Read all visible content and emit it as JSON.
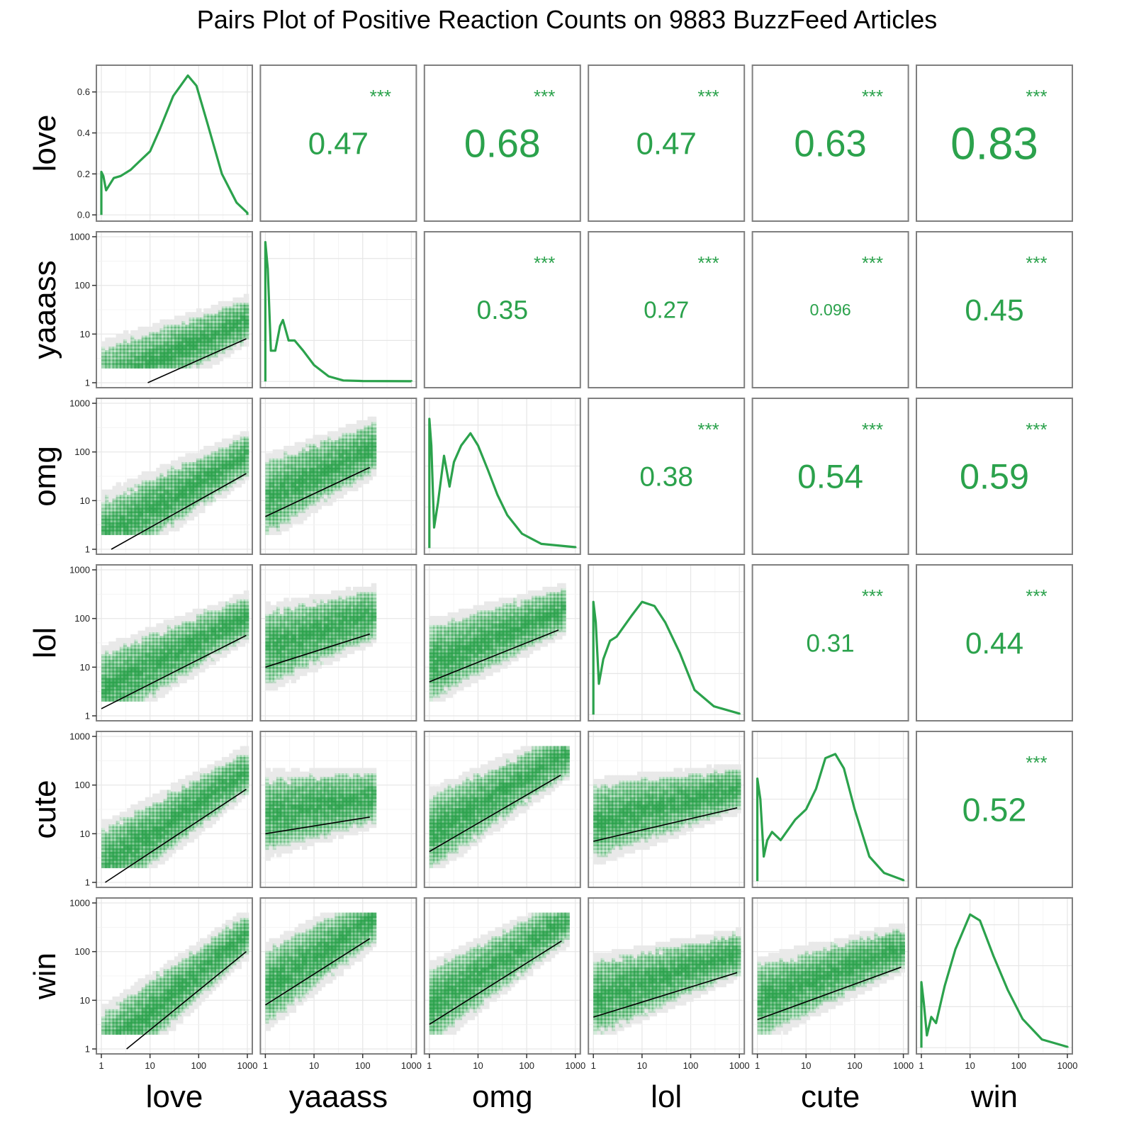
{
  "chart_data": {
    "type": "pairs",
    "title": "Pairs Plot of Positive Reaction Counts on 9883 BuzzFeed Articles",
    "variables": [
      "love",
      "yaaass",
      "omg",
      "lol",
      "cute",
      "win"
    ],
    "axis_scale": "log10",
    "axis_range": [
      1,
      1000
    ],
    "tick_labels": [
      "1",
      "10",
      "100",
      "1000"
    ],
    "density_ticks": [
      "0.0",
      "0.2",
      "0.4",
      "0.6"
    ],
    "density_ylim": [
      0,
      0.7
    ],
    "significance": "***",
    "correlations": [
      {
        "row": "love",
        "col": "yaaass",
        "value": "0.47"
      },
      {
        "row": "love",
        "col": "omg",
        "value": "0.68"
      },
      {
        "row": "love",
        "col": "lol",
        "value": "0.47"
      },
      {
        "row": "love",
        "col": "cute",
        "value": "0.63"
      },
      {
        "row": "love",
        "col": "win",
        "value": "0.83"
      },
      {
        "row": "yaaass",
        "col": "omg",
        "value": "0.35"
      },
      {
        "row": "yaaass",
        "col": "lol",
        "value": "0.27"
      },
      {
        "row": "yaaass",
        "col": "cute",
        "value": "0.096"
      },
      {
        "row": "yaaass",
        "col": "win",
        "value": "0.45"
      },
      {
        "row": "omg",
        "col": "lol",
        "value": "0.38"
      },
      {
        "row": "omg",
        "col": "cute",
        "value": "0.54"
      },
      {
        "row": "omg",
        "col": "win",
        "value": "0.59"
      },
      {
        "row": "lol",
        "col": "cute",
        "value": "0.31"
      },
      {
        "row": "lol",
        "col": "win",
        "value": "0.44"
      },
      {
        "row": "cute",
        "col": "win",
        "value": "0.52"
      }
    ],
    "densities": {
      "love": [
        [
          1,
          0
        ],
        [
          1,
          0.21
        ],
        [
          1.1,
          0.19
        ],
        [
          1.25,
          0.12
        ],
        [
          1.5,
          0.15
        ],
        [
          1.8,
          0.18
        ],
        [
          2.5,
          0.19
        ],
        [
          4,
          0.22
        ],
        [
          6,
          0.26
        ],
        [
          10,
          0.31
        ],
        [
          16,
          0.42
        ],
        [
          30,
          0.58
        ],
        [
          60,
          0.68
        ],
        [
          90,
          0.63
        ],
        [
          150,
          0.45
        ],
        [
          300,
          0.2
        ],
        [
          600,
          0.06
        ],
        [
          1000,
          0.01
        ],
        [
          1000,
          0
        ]
      ],
      "yaaass": [
        [
          1,
          0
        ],
        [
          1,
          0.68
        ],
        [
          1.12,
          0.55
        ],
        [
          1.3,
          0.15
        ],
        [
          1.6,
          0.15
        ],
        [
          2,
          0.27
        ],
        [
          2.3,
          0.3
        ],
        [
          3,
          0.2
        ],
        [
          4,
          0.2
        ],
        [
          6,
          0.15
        ],
        [
          10,
          0.08
        ],
        [
          20,
          0.025
        ],
        [
          40,
          0.005
        ],
        [
          100,
          0.002
        ],
        [
          1000,
          0.001
        ],
        [
          1000,
          0
        ]
      ],
      "omg": [
        [
          1,
          0
        ],
        [
          1,
          0.63
        ],
        [
          1.1,
          0.5
        ],
        [
          1.25,
          0.1
        ],
        [
          1.5,
          0.22
        ],
        [
          2,
          0.45
        ],
        [
          2.6,
          0.3
        ],
        [
          3.2,
          0.42
        ],
        [
          4.5,
          0.5
        ],
        [
          7,
          0.56
        ],
        [
          10,
          0.5
        ],
        [
          16,
          0.38
        ],
        [
          25,
          0.26
        ],
        [
          40,
          0.16
        ],
        [
          80,
          0.07
        ],
        [
          200,
          0.02
        ],
        [
          1000,
          0.004
        ],
        [
          1000,
          0
        ]
      ],
      "lol": [
        [
          1,
          0
        ],
        [
          1,
          0.55
        ],
        [
          1.12,
          0.45
        ],
        [
          1.3,
          0.15
        ],
        [
          1.6,
          0.27
        ],
        [
          2.2,
          0.36
        ],
        [
          3,
          0.38
        ],
        [
          6,
          0.48
        ],
        [
          10,
          0.55
        ],
        [
          18,
          0.53
        ],
        [
          30,
          0.45
        ],
        [
          60,
          0.3
        ],
        [
          120,
          0.12
        ],
        [
          300,
          0.04
        ],
        [
          1000,
          0.005
        ],
        [
          1000,
          0
        ]
      ],
      "cute": [
        [
          1,
          0
        ],
        [
          1,
          0.5
        ],
        [
          1.15,
          0.4
        ],
        [
          1.35,
          0.12
        ],
        [
          1.6,
          0.2
        ],
        [
          2,
          0.24
        ],
        [
          3,
          0.2
        ],
        [
          6,
          0.3
        ],
        [
          10,
          0.35
        ],
        [
          16,
          0.45
        ],
        [
          25,
          0.6
        ],
        [
          40,
          0.62
        ],
        [
          60,
          0.55
        ],
        [
          100,
          0.35
        ],
        [
          200,
          0.12
        ],
        [
          400,
          0.04
        ],
        [
          1000,
          0.005
        ],
        [
          1000,
          0
        ]
      ],
      "win": [
        [
          1,
          0
        ],
        [
          1,
          0.32
        ],
        [
          1.12,
          0.22
        ],
        [
          1.3,
          0.06
        ],
        [
          1.6,
          0.15
        ],
        [
          2,
          0.12
        ],
        [
          3,
          0.3
        ],
        [
          5,
          0.48
        ],
        [
          10,
          0.65
        ],
        [
          16,
          0.62
        ],
        [
          30,
          0.45
        ],
        [
          60,
          0.28
        ],
        [
          120,
          0.14
        ],
        [
          300,
          0.04
        ],
        [
          1000,
          0.004
        ],
        [
          1000,
          0
        ]
      ]
    },
    "fits": [
      {
        "row": "yaaass",
        "col": "love",
        "x": [
          9,
          950
        ],
        "y": [
          1,
          8
        ]
      },
      {
        "row": "omg",
        "col": "love",
        "x": [
          1.6,
          950
        ],
        "y": [
          1,
          36
        ]
      },
      {
        "row": "omg",
        "col": "yaaass",
        "x": [
          1,
          140
        ],
        "y": [
          4.7,
          48
        ]
      },
      {
        "row": "lol",
        "col": "love",
        "x": [
          1,
          950
        ],
        "y": [
          1.4,
          45
        ]
      },
      {
        "row": "lol",
        "col": "yaaass",
        "x": [
          1,
          140
        ],
        "y": [
          10,
          48
        ]
      },
      {
        "row": "lol",
        "col": "omg",
        "x": [
          1,
          450
        ],
        "y": [
          5,
          58
        ]
      },
      {
        "row": "cute",
        "col": "love",
        "x": [
          1.2,
          950
        ],
        "y": [
          1,
          82
        ]
      },
      {
        "row": "cute",
        "col": "yaaass",
        "x": [
          1,
          140
        ],
        "y": [
          10,
          22
        ]
      },
      {
        "row": "cute",
        "col": "omg",
        "x": [
          1,
          500
        ],
        "y": [
          4.3,
          160
        ]
      },
      {
        "row": "cute",
        "col": "lol",
        "x": [
          1,
          900
        ],
        "y": [
          7,
          34
        ]
      },
      {
        "row": "win",
        "col": "love",
        "x": [
          3.3,
          950
        ],
        "y": [
          1,
          100
        ]
      },
      {
        "row": "win",
        "col": "yaaass",
        "x": [
          1,
          140
        ],
        "y": [
          8,
          185
        ]
      },
      {
        "row": "win",
        "col": "omg",
        "x": [
          1,
          520
        ],
        "y": [
          3.2,
          165
        ]
      },
      {
        "row": "win",
        "col": "lol",
        "x": [
          1,
          900
        ],
        "y": [
          4.5,
          37
        ]
      },
      {
        "row": "win",
        "col": "cute",
        "x": [
          1,
          900
        ],
        "y": [
          4,
          48
        ]
      }
    ],
    "colors": {
      "accent": "#2ba24c",
      "fit_line": "#000000",
      "frame": "#7f7f7f",
      "grid": "#e6e6e6",
      "band": "#999999"
    },
    "grid": true,
    "legend": "none"
  }
}
